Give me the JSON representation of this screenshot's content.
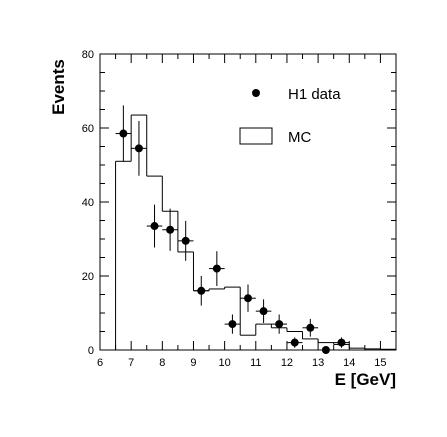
{
  "chart_data": {
    "type": "histogram",
    "xlabel": "E [GeV]",
    "ylabel": "Events",
    "xlim": [
      6,
      15.5
    ],
    "ylim": [
      0,
      80
    ],
    "x_ticks": [
      6,
      7,
      8,
      9,
      10,
      11,
      12,
      13,
      14,
      15
    ],
    "y_ticks": [
      0,
      20,
      40,
      60,
      80
    ],
    "grid": false,
    "legend": {
      "placement": "top-right",
      "entries": [
        {
          "label": "H1 data",
          "style": "marker"
        },
        {
          "label": "MC",
          "style": "box"
        }
      ]
    },
    "series": [
      {
        "name": "MC",
        "kind": "step-histogram",
        "bin_edges": [
          6.5,
          7.0,
          7.5,
          8.0,
          8.5,
          9.0,
          9.5,
          10.0,
          10.5,
          11.0,
          11.5,
          12.0,
          12.5,
          13.0,
          13.5,
          14.0,
          14.5,
          15.0,
          15.5
        ],
        "values": [
          51,
          63.5,
          47,
          37.5,
          26.5,
          16,
          16.5,
          17,
          4,
          7,
          6,
          5,
          3,
          2,
          1.5,
          0.5,
          0.3,
          0.2
        ]
      },
      {
        "name": "H1 data",
        "kind": "points",
        "x": [
          6.75,
          7.25,
          7.75,
          8.25,
          8.75,
          9.25,
          9.75,
          10.25,
          10.75,
          11.25,
          11.75,
          12.25,
          12.75,
          13.25,
          13.75
        ],
        "y": [
          58.5,
          54.5,
          33.5,
          32.5,
          29.5,
          16,
          22,
          7,
          14,
          10.5,
          7,
          2,
          6,
          0,
          2
        ],
        "yerr": [
          7.6,
          7.4,
          5.8,
          5.7,
          5.4,
          4.0,
          4.7,
          2.6,
          3.7,
          3.2,
          2.6,
          1.4,
          2.4,
          0,
          1.4
        ]
      }
    ]
  }
}
